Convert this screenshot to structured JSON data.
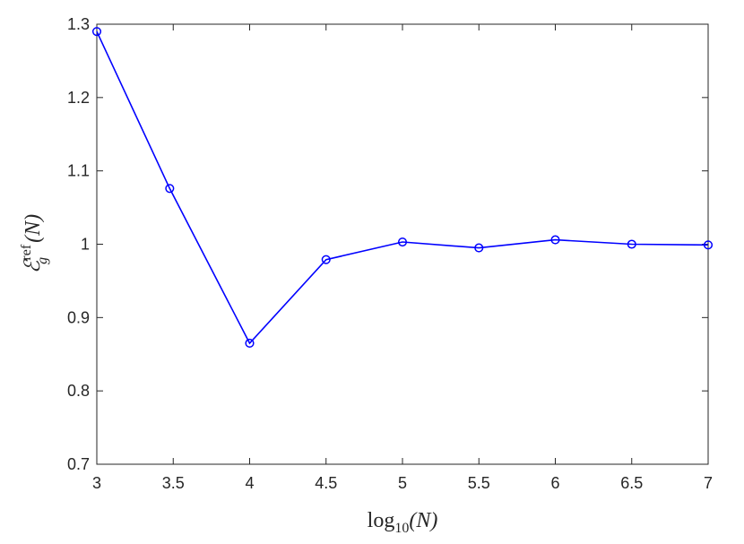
{
  "chart_data": {
    "type": "line",
    "x": [
      3,
      3.477,
      4,
      4.5,
      5,
      5.5,
      6,
      6.5,
      7
    ],
    "series": [
      {
        "values": [
          1.29,
          1.076,
          0.865,
          0.979,
          1.003,
          0.995,
          1.006,
          1.0,
          0.999
        ],
        "color": "#0000ff",
        "marker": "circle"
      }
    ],
    "xlim": [
      3,
      7
    ],
    "ylim": [
      0.7,
      1.3
    ],
    "xticks": [
      "3",
      "3.5",
      "4",
      "4.5",
      "5",
      "5.5",
      "6",
      "6.5",
      "7"
    ],
    "yticks": [
      "0.7",
      "0.8",
      "0.9",
      "1",
      "1.1",
      "1.2",
      "1.3"
    ],
    "xlabel": {
      "func": "log",
      "sub": "10",
      "arg": "(N)"
    },
    "ylabel": {
      "symbol": "ℰ",
      "sup": "ref",
      "sub": "g",
      "arg": "(N)"
    },
    "grid": false
  }
}
